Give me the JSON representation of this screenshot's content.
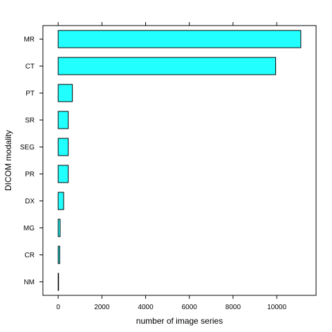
{
  "chart_data": {
    "type": "bar",
    "orientation": "horizontal",
    "categories": [
      "MR",
      "CT",
      "PT",
      "SR",
      "SEG",
      "PR",
      "DX",
      "MG",
      "CR",
      "NM"
    ],
    "values": [
      11100,
      9950,
      650,
      460,
      460,
      460,
      250,
      90,
      70,
      10
    ],
    "title": "",
    "xlabel": "number of image series",
    "ylabel": "DICOM modality",
    "xlim": [
      -700,
      11800
    ],
    "xticks": [
      0,
      2000,
      4000,
      6000,
      8000,
      10000
    ],
    "bar_color": "#22ffff",
    "grid": false
  }
}
